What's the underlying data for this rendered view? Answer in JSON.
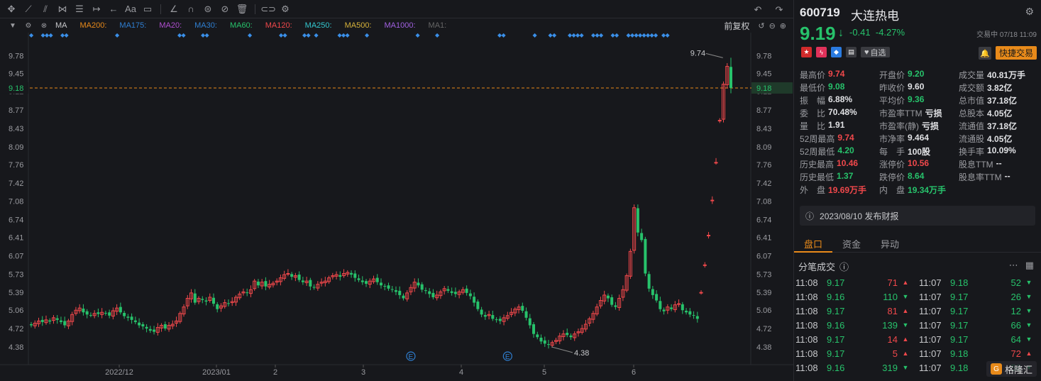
{
  "toolbar": {
    "icons": [
      "crosshair-icon",
      "line-icon",
      "channel-icon",
      "pattern-icon",
      "fib-icon",
      "measure-icon",
      "arrow-icon",
      "text-icon",
      "note-icon",
      "pencil-icon",
      "magnet-icon",
      "lock-icon",
      "hide-icon",
      "trash-icon",
      "compare-icon",
      "settings-icon"
    ],
    "undo": "↶",
    "redo": "↷"
  },
  "ma_bar": {
    "label": "MA",
    "items": [
      {
        "label": "MA200:",
        "color": "#e88a1a"
      },
      {
        "label": "MA175:",
        "color": "#2f7fd1"
      },
      {
        "label": "MA20:",
        "color": "#b04fcf"
      },
      {
        "label": "MA30:",
        "color": "#2f7fd1"
      },
      {
        "label": "MA60:",
        "color": "#27c26b"
      },
      {
        "label": "MA120:",
        "color": "#f0484b"
      },
      {
        "label": "MA250:",
        "color": "#33c8d0"
      },
      {
        "label": "MA500:",
        "color": "#d6b23a"
      },
      {
        "label": "MA1000:",
        "color": "#a060e0"
      },
      {
        "label": "MA1:",
        "color": "#666"
      }
    ],
    "adjust": "前复权"
  },
  "chart_data": {
    "type": "candlestick",
    "y_ticks": [
      "9.78",
      "9.45",
      "9.12",
      "8.77",
      "8.43",
      "8.09",
      "7.76",
      "7.42",
      "7.08",
      "6.74",
      "6.41",
      "6.07",
      "5.73",
      "5.39",
      "5.06",
      "4.72",
      "4.38"
    ],
    "y_values": [
      9.78,
      9.45,
      9.12,
      8.77,
      8.43,
      8.09,
      7.76,
      7.42,
      7.08,
      6.74,
      6.41,
      6.07,
      5.73,
      5.39,
      5.06,
      4.72,
      4.38
    ],
    "ylim": [
      4.05,
      10.1
    ],
    "x_labels": [
      "2022/12",
      "2023/01",
      "2",
      "3",
      "4",
      "5",
      "6"
    ],
    "current_price_label": "9.18",
    "high_annotation": "9.74",
    "low_annotation": "4.38",
    "event_marker": "E",
    "closes": [
      4.78,
      4.82,
      4.86,
      4.84,
      4.88,
      4.85,
      4.92,
      4.88,
      4.84,
      4.78,
      4.86,
      4.98,
      5.06,
      5.1,
      5.02,
      4.98,
      4.97,
      5.0,
      4.99,
      5.02,
      5.0,
      4.96,
      5.05,
      5.1,
      5.02,
      4.95,
      4.92,
      4.88,
      4.84,
      4.78,
      4.76,
      4.72,
      4.68,
      4.66,
      4.74,
      4.78,
      4.72,
      4.78,
      4.8,
      4.86,
      5.0,
      5.12,
      5.28,
      5.38,
      5.2,
      5.28,
      5.25,
      5.22,
      5.3,
      5.18,
      5.08,
      5.14,
      5.2,
      5.18,
      5.22,
      5.3,
      5.36,
      5.4,
      5.38,
      5.44,
      5.6,
      5.52,
      5.58,
      5.5,
      5.54,
      5.56,
      5.6,
      5.66,
      5.72,
      5.74,
      5.68,
      5.7,
      5.62,
      5.58,
      5.6,
      5.5,
      5.48,
      5.54,
      5.58,
      5.6,
      5.66,
      5.7,
      5.72,
      5.68,
      5.74,
      5.76,
      5.72,
      5.66,
      5.62,
      5.58,
      5.55,
      5.6,
      5.64,
      5.58,
      5.52,
      5.5,
      5.46,
      5.44,
      5.4,
      5.34,
      5.28,
      5.38,
      5.48,
      5.58,
      5.52,
      5.44,
      5.42,
      5.36,
      5.3,
      5.34,
      5.4,
      5.46,
      5.42,
      5.38,
      5.36,
      5.4,
      5.44,
      5.38,
      5.32,
      5.2,
      5.08,
      4.98,
      4.94,
      4.98,
      4.9,
      4.88,
      4.86,
      4.92,
      4.96,
      5.02,
      5.08,
      5.12,
      5.05,
      4.92,
      4.78,
      4.62,
      4.56,
      4.48,
      4.44,
      4.42,
      4.46,
      4.5,
      4.58,
      4.62,
      4.6,
      4.56,
      4.62,
      4.66,
      4.72,
      4.8,
      4.9,
      5.0,
      5.12,
      5.24,
      5.34,
      5.28,
      5.16,
      5.12,
      5.28,
      5.44,
      5.7,
      6.15,
      6.96,
      6.5,
      6.36,
      5.74,
      5.46,
      5.34,
      5.24,
      5.08,
      5.04,
      5.12,
      5.08,
      5.16,
      5.18,
      5.06,
      5.02,
      4.98,
      4.96,
      4.9,
      5.39,
      5.9,
      6.45,
      7.1,
      7.8,
      8.58,
      9.25,
      9.58,
      9.18
    ],
    "event_indices": [
      102,
      128
    ]
  },
  "marker_dots": "◆",
  "panel": {
    "code": "600719",
    "name": "大连热电",
    "price": "9.19",
    "change": "-0.41",
    "change_pct": "-4.27%",
    "status": "交易中 07/18 11:09",
    "watch": "自选",
    "quick_trade": "快捷交易",
    "stats": [
      [
        {
          "l": "最高价",
          "v": "9.74",
          "c": "red"
        },
        {
          "l": "开盘价",
          "v": "9.20",
          "c": "green"
        },
        {
          "l": "成交量",
          "v": "40.81万手",
          "c": "white"
        }
      ],
      [
        {
          "l": "最低价",
          "v": "9.08",
          "c": "green"
        },
        {
          "l": "昨收价",
          "v": "9.60",
          "c": "white"
        },
        {
          "l": "成交额",
          "v": "3.82亿",
          "c": "white"
        }
      ],
      [
        {
          "l": "振　幅",
          "v": "6.88%",
          "c": "white"
        },
        {
          "l": "平均价",
          "v": "9.36",
          "c": "green"
        },
        {
          "l": "总市值",
          "v": "37.18亿",
          "c": "white"
        }
      ],
      [
        {
          "l": "委　比",
          "v": "70.48%",
          "c": "white"
        },
        {
          "l": "市盈率TTM",
          "v": "亏损",
          "c": "white"
        },
        {
          "l": "总股本",
          "v": "4.05亿",
          "c": "white"
        }
      ],
      [
        {
          "l": "量　比",
          "v": "1.91",
          "c": "white"
        },
        {
          "l": "市盈率(静)",
          "v": "亏损",
          "c": "white"
        },
        {
          "l": "流通值",
          "v": "37.18亿",
          "c": "white"
        }
      ],
      [
        {
          "l": "52周最高",
          "v": "9.74",
          "c": "red"
        },
        {
          "l": "市净率",
          "v": "9.464",
          "c": "white"
        },
        {
          "l": "流通股",
          "v": "4.05亿",
          "c": "white"
        }
      ],
      [
        {
          "l": "52周最低",
          "v": "4.20",
          "c": "green"
        },
        {
          "l": "每　手",
          "v": "100股",
          "c": "white"
        },
        {
          "l": "换手率",
          "v": "10.09%",
          "c": "white"
        }
      ],
      [
        {
          "l": "历史最高",
          "v": "10.46",
          "c": "red"
        },
        {
          "l": "涨停价",
          "v": "10.56",
          "c": "red"
        },
        {
          "l": "股息TTM",
          "v": "--",
          "c": "white"
        }
      ],
      [
        {
          "l": "历史最低",
          "v": "1.37",
          "c": "green"
        },
        {
          "l": "跌停价",
          "v": "8.64",
          "c": "green"
        },
        {
          "l": "股息率TTM",
          "v": "--",
          "c": "white"
        }
      ],
      [
        {
          "l": "外　盘",
          "v": "19.69万手",
          "c": "red"
        },
        {
          "l": "内　盘",
          "v": "19.34万手",
          "c": "green"
        },
        {
          "l": "",
          "v": "",
          "c": "white"
        }
      ]
    ],
    "notice": "2023/08/10  发布财报",
    "tabs": [
      "盘口",
      "资金",
      "异动"
    ],
    "trades_title": "分笔成交",
    "trades": [
      {
        "t1": "11:08",
        "p1": "9.17",
        "v1": "71",
        "d1": "up",
        "t2": "11:07",
        "p2": "9.18",
        "v2": "52",
        "d2": "down"
      },
      {
        "t1": "11:08",
        "p1": "9.16",
        "v1": "110",
        "d1": "down",
        "t2": "11:07",
        "p2": "9.17",
        "v2": "26",
        "d2": "down"
      },
      {
        "t1": "11:08",
        "p1": "9.17",
        "v1": "81",
        "d1": "up",
        "t2": "11:07",
        "p2": "9.17",
        "v2": "12",
        "d2": "down"
      },
      {
        "t1": "11:08",
        "p1": "9.16",
        "v1": "139",
        "d1": "down",
        "t2": "11:07",
        "p2": "9.17",
        "v2": "66",
        "d2": "down"
      },
      {
        "t1": "11:08",
        "p1": "9.17",
        "v1": "14",
        "d1": "up",
        "t2": "11:07",
        "p2": "9.17",
        "v2": "64",
        "d2": "down"
      },
      {
        "t1": "11:08",
        "p1": "9.17",
        "v1": "5",
        "d1": "up",
        "t2": "11:07",
        "p2": "9.18",
        "v2": "72",
        "d2": "up"
      },
      {
        "t1": "11:08",
        "p1": "9.16",
        "v1": "319",
        "d1": "down",
        "t2": "11:07",
        "p2": "9.18",
        "v2": "56",
        "d2": "down"
      }
    ],
    "logo": "格隆汇"
  }
}
